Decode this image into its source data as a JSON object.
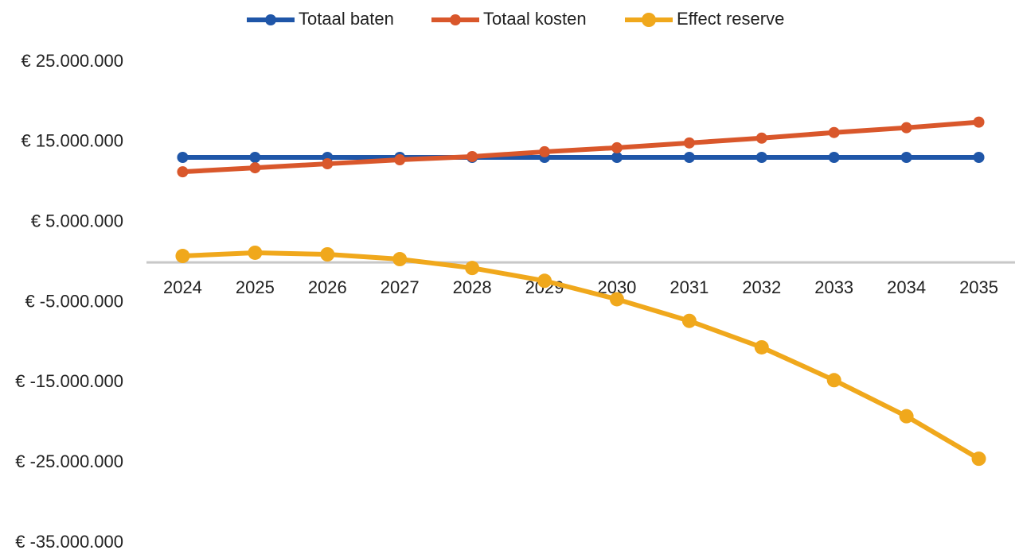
{
  "chart_data": {
    "type": "line",
    "categories": [
      "2024",
      "2025",
      "2026",
      "2027",
      "2028",
      "2029",
      "2030",
      "2031",
      "2032",
      "2033",
      "2034",
      "2035"
    ],
    "series": [
      {
        "name": "Totaal baten",
        "color": "#1f56a8",
        "values": [
          13100000,
          13100000,
          13100000,
          13100000,
          13100000,
          13100000,
          13100000,
          13100000,
          13100000,
          13100000,
          13100000,
          13100000
        ]
      },
      {
        "name": "Totaal kosten",
        "color": "#d9572b",
        "values": [
          11300000,
          11800000,
          12300000,
          12800000,
          13200000,
          13800000,
          14300000,
          14900000,
          15500000,
          16200000,
          16800000,
          17500000
        ]
      },
      {
        "name": "Effect reserve",
        "color": "#f0a81c",
        "values": [
          800000,
          1200000,
          1000000,
          400000,
          -700000,
          -2300000,
          -4600000,
          -7300000,
          -10600000,
          -14700000,
          -19200000,
          -24500000
        ]
      }
    ],
    "ylim": [
      -35000000,
      25000000
    ],
    "yticks": [
      {
        "value": 25000000,
        "label": "€ 25.000.000"
      },
      {
        "value": 15000000,
        "label": "€ 15.000.000"
      },
      {
        "value": 5000000,
        "label": "€ 5.000.000"
      },
      {
        "value": -5000000,
        "label": "€ -5.000.000"
      },
      {
        "value": -15000000,
        "label": "€ -15.000.000"
      },
      {
        "value": -25000000,
        "label": "€ -25.000.000"
      },
      {
        "value": -35000000,
        "label": "€ -35.000.000"
      }
    ],
    "grid": false,
    "legend": "top"
  }
}
